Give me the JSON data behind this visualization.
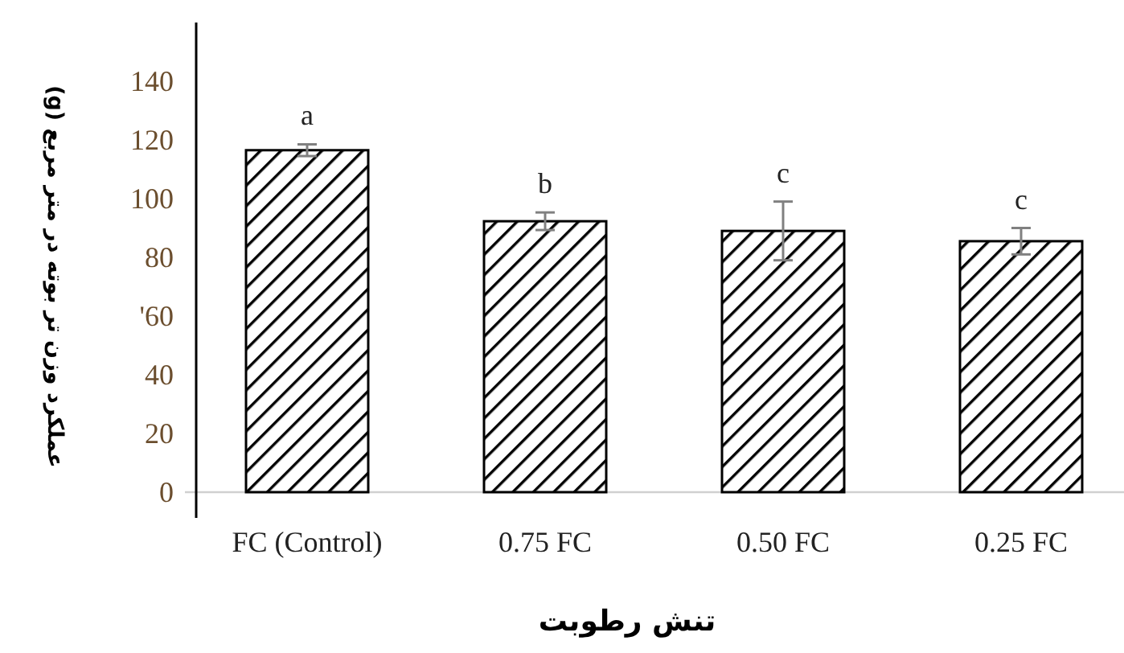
{
  "chart_data": {
    "type": "bar",
    "xlabel": "تنش رطوبت",
    "ylabel": "عملکرد وزن تر بوته در متر مربع (g)",
    "categories": [
      "FC (Control)",
      "0.75 FC",
      "0.50 FC",
      "0.25 FC"
    ],
    "values": [
      116.5,
      92.3,
      89,
      85.5
    ],
    "errors": [
      2,
      3,
      10,
      4.5
    ],
    "color": "#000000",
    "ylim": [
      0,
      160
    ],
    "yticks": [
      0,
      20,
      40,
      {
        "value": 60,
        "label": "'60"
      },
      80,
      100,
      120,
      140
    ],
    "grid": false,
    "annotations": [
      {
        "text": "a",
        "x": "FC (Control)",
        "y": 118.5
      },
      {
        "text": "b",
        "x": "0.75 FC",
        "y": 95.3
      },
      {
        "text": "c",
        "x": "0.50 FC",
        "y": 99
      },
      {
        "text": "c",
        "x": "0.25 FC",
        "y": 90
      }
    ]
  }
}
